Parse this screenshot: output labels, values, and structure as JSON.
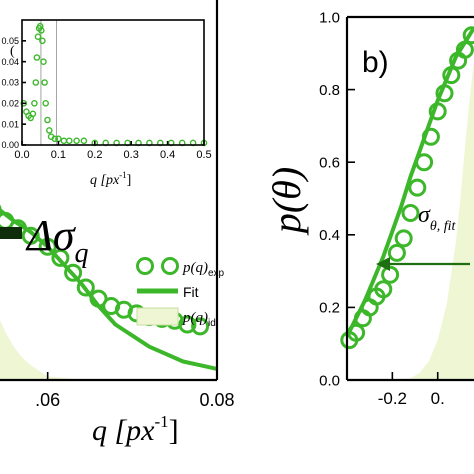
{
  "colors": {
    "fit": "#3cb72a",
    "marker": "#3cb72a",
    "ideal_fill": "#eef6d4",
    "annotation": "#1f6f12",
    "axis": "#000000"
  },
  "chart_data": [
    {
      "id": "panel-a",
      "type": "scatter",
      "xlim": [
        0.05,
        0.08
      ],
      "ylim": [
        0,
        1
      ],
      "xticks": [
        0.06,
        0.08
      ],
      "xtick_labels": [
        ".06",
        "0.08"
      ],
      "xlabel": "q [px",
      "xlabel_sup": "-1",
      "xlabel_close": "]",
      "series": [
        {
          "name": "p(q)exp",
          "kind": "markers",
          "x": [
            0.0505,
            0.052,
            0.0535,
            0.055,
            0.0565,
            0.058,
            0.06,
            0.0615,
            0.063,
            0.0645,
            0.066,
            0.0675,
            0.069,
            0.0705,
            0.072,
            0.0735,
            0.075,
            0.0765,
            0.078
          ],
          "y": [
            0.55,
            0.49,
            0.46,
            0.43,
            0.41,
            0.39,
            0.36,
            0.33,
            0.29,
            0.25,
            0.22,
            0.2,
            0.19,
            0.18,
            0.17,
            0.165,
            0.16,
            0.15,
            0.145
          ]
        },
        {
          "name": "Fit",
          "kind": "line",
          "x": [
            0.05,
            0.052,
            0.054,
            0.056,
            0.058,
            0.06,
            0.062,
            0.064,
            0.066,
            0.068,
            0.07,
            0.072,
            0.074,
            0.076,
            0.078,
            0.08
          ],
          "y": [
            0.53,
            0.5,
            0.465,
            0.43,
            0.4,
            0.36,
            0.31,
            0.26,
            0.2,
            0.15,
            0.12,
            0.09,
            0.07,
            0.05,
            0.04,
            0.03
          ]
        },
        {
          "name": "p(q)id",
          "kind": "area",
          "x": [
            0.05,
            0.051,
            0.052,
            0.053,
            0.054,
            0.055,
            0.056,
            0.057,
            0.058,
            0.06,
            0.062,
            0.064,
            0.066,
            0.068,
            0.07,
            0.08
          ],
          "y": [
            0.45,
            0.38,
            0.31,
            0.24,
            0.18,
            0.13,
            0.09,
            0.06,
            0.04,
            0.01,
            0.005,
            0.002,
            0.001,
            0.0,
            0.0,
            0.0
          ]
        }
      ],
      "legend": {
        "position": "right",
        "entries": [
          {
            "base": "p(q)",
            "sub": "exp",
            "kind": "marker"
          },
          {
            "base": "Fit",
            "sub": "",
            "kind": "line"
          },
          {
            "base": "p(q)",
            "sub": "id",
            "kind": "area"
          }
        ]
      },
      "annotation": {
        "main": "Δσ",
        "sub": "q"
      },
      "inset": {
        "type": "scatter",
        "xlim": [
          0,
          0.5
        ],
        "ylim": [
          0,
          0.06
        ],
        "xticks": [
          0.0,
          0.1,
          0.2,
          0.3,
          0.4,
          0.5
        ],
        "xtick_labels": [
          "0.0",
          "0.1",
          "0.2",
          "0.3",
          "0.4",
          "0.5"
        ],
        "yticks": [
          0.0,
          0.01,
          0.02,
          0.03,
          0.04,
          0.05
        ],
        "ytick_labels": [
          "0.00",
          "0.01",
          "0.02",
          "0.03",
          "0.04",
          "0.05"
        ],
        "xlabel": "q [px",
        "xlabel_sup": "-1",
        "xlabel_close": "]",
        "ylabel_fragment": "(",
        "vlines": [
          0.052,
          0.095
        ],
        "series": [
          {
            "name": "",
            "kind": "markers",
            "x": [
              0.005,
              0.012,
              0.018,
              0.024,
              0.03,
              0.034,
              0.038,
              0.041,
              0.044,
              0.047,
              0.05,
              0.053,
              0.056,
              0.059,
              0.062,
              0.065,
              0.07,
              0.075,
              0.08,
              0.09,
              0.1,
              0.115,
              0.13,
              0.15,
              0.17,
              0.2,
              0.23,
              0.26,
              0.29,
              0.32,
              0.35,
              0.38,
              0.41,
              0.44,
              0.47,
              0.5
            ],
            "y": [
              0.02,
              0.016,
              0.014,
              0.013,
              0.015,
              0.02,
              0.03,
              0.042,
              0.052,
              0.056,
              0.057,
              0.055,
              0.05,
              0.04,
              0.03,
              0.02,
              0.012,
              0.007,
              0.004,
              0.003,
              0.003,
              0.002,
              0.002,
              0.002,
              0.002,
              0.001,
              0.001,
              0.001,
              0.001,
              0.001,
              0.001,
              0.001,
              0.001,
              0.001,
              0.001,
              0.001
            ]
          }
        ]
      }
    },
    {
      "id": "panel-b",
      "type": "scatter",
      "panel_label": "b)",
      "xlim": [
        -0.3,
        -0.02
      ],
      "ylim": [
        0.0,
        1.0
      ],
      "xticks": [
        -0.2,
        -0.1
      ],
      "xtick_labels": [
        "-0.2",
        "0."
      ],
      "yticks": [
        0.0,
        0.2,
        0.4,
        0.6,
        0.8,
        1.0
      ],
      "ytick_labels": [
        "0.0",
        "0.2",
        "0.4",
        "0.6",
        "0.8",
        "1.0"
      ],
      "ylabel": "p(θ)",
      "annotation": {
        "main": "σ",
        "sub": "θ, fit"
      },
      "series": [
        {
          "name": "",
          "kind": "markers",
          "x": [
            -0.295,
            -0.28,
            -0.265,
            -0.25,
            -0.235,
            -0.22,
            -0.205,
            -0.19,
            -0.175,
            -0.16,
            -0.145,
            -0.13,
            -0.115,
            -0.1,
            -0.085,
            -0.07,
            -0.055,
            -0.04,
            -0.025
          ],
          "y": [
            0.11,
            0.13,
            0.17,
            0.2,
            0.23,
            0.25,
            0.29,
            0.35,
            0.39,
            0.46,
            0.53,
            0.6,
            0.67,
            0.74,
            0.79,
            0.84,
            0.88,
            0.91,
            0.95
          ]
        },
        {
          "name": "",
          "kind": "line",
          "x": [
            -0.3,
            -0.28,
            -0.26,
            -0.24,
            -0.22,
            -0.2,
            -0.18,
            -0.16,
            -0.14,
            -0.12,
            -0.1,
            -0.08,
            -0.06,
            -0.04,
            -0.02
          ],
          "y": [
            0.12,
            0.17,
            0.22,
            0.28,
            0.34,
            0.41,
            0.48,
            0.56,
            0.63,
            0.7,
            0.77,
            0.83,
            0.89,
            0.93,
            0.97
          ]
        },
        {
          "name": "",
          "kind": "area",
          "x": [
            -0.3,
            -0.2,
            -0.16,
            -0.14,
            -0.12,
            -0.1,
            -0.08,
            -0.06,
            -0.05,
            -0.04,
            -0.03,
            -0.02
          ],
          "y": [
            0.0,
            0.0,
            0.005,
            0.02,
            0.05,
            0.11,
            0.21,
            0.38,
            0.5,
            0.64,
            0.77,
            0.88
          ]
        }
      ]
    }
  ]
}
